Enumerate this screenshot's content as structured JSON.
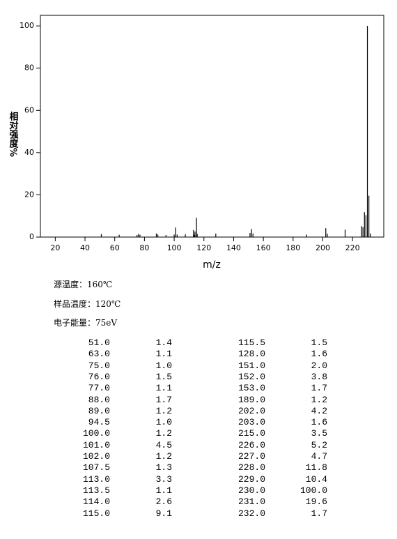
{
  "chart_data": {
    "type": "stick",
    "ylabel": "相对强度%",
    "xlabel": "m/z",
    "x": [
      51,
      63,
      75,
      76,
      77,
      88,
      89,
      94.5,
      100,
      101,
      102,
      107.5,
      113,
      113.5,
      114,
      115,
      115.5,
      128,
      151,
      152,
      153,
      189,
      202,
      203,
      215,
      226,
      227,
      228,
      229,
      230,
      231,
      232
    ],
    "values": [
      1.4,
      1.1,
      1.0,
      1.5,
      1.1,
      1.7,
      1.2,
      1.0,
      1.2,
      4.5,
      1.2,
      1.3,
      3.3,
      1.1,
      2.6,
      9.1,
      1.5,
      1.6,
      2.0,
      3.8,
      1.7,
      1.2,
      4.2,
      1.6,
      3.5,
      5.2,
      4.7,
      11.8,
      10.4,
      100,
      19.6,
      1.7
    ],
    "color": "#000000",
    "xlim": [
      10,
      241
    ],
    "xticks": [
      20,
      40,
      60,
      80,
      100,
      120,
      140,
      160,
      180,
      200,
      220
    ],
    "ylim": [
      0,
      105
    ],
    "yticks": [
      0,
      20,
      40,
      60,
      80,
      100
    ]
  },
  "info": [
    "源温度：160℃",
    "样品温度：120℃",
    "电子能量：75eV"
  ],
  "table": {
    "rows": [
      [
        "51.0",
        "1.4",
        "115.5",
        "1.5"
      ],
      [
        "63.0",
        "1.1",
        "128.0",
        "1.6"
      ],
      [
        "75.0",
        "1.0",
        "151.0",
        "2.0"
      ],
      [
        "76.0",
        "1.5",
        "152.0",
        "3.8"
      ],
      [
        "77.0",
        "1.1",
        "153.0",
        "1.7"
      ],
      [
        "88.0",
        "1.7",
        "189.0",
        "1.2"
      ],
      [
        "89.0",
        "1.2",
        "202.0",
        "4.2"
      ],
      [
        "94.5",
        "1.0",
        "203.0",
        "1.6"
      ],
      [
        "100.0",
        "1.2",
        "215.0",
        "3.5"
      ],
      [
        "101.0",
        "4.5",
        "226.0",
        "5.2"
      ],
      [
        "102.0",
        "1.2",
        "227.0",
        "4.7"
      ],
      [
        "107.5",
        "1.3",
        "228.0",
        "11.8"
      ],
      [
        "113.0",
        "3.3",
        "229.0",
        "10.4"
      ],
      [
        "113.5",
        "1.1",
        "230.0",
        "100.0"
      ],
      [
        "114.0",
        "2.6",
        "231.0",
        "19.6"
      ],
      [
        "115.0",
        "9.1",
        "232.0",
        "1.7"
      ]
    ]
  }
}
